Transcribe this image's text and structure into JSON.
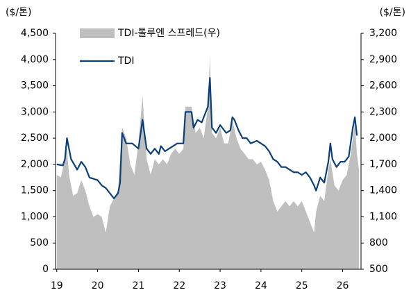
{
  "chart_data": {
    "type": "line",
    "y_unit_label": "($/톤)",
    "y2_unit_label": "($/톤)",
    "xlim": [
      18.97,
      26.45
    ],
    "xticks": [
      19,
      20,
      21,
      22,
      23,
      24,
      25,
      26
    ],
    "ylim": [
      0,
      4500
    ],
    "yticks": [
      0,
      500,
      {
        "value": 1000,
        "label": "1,000"
      },
      {
        "value": 1500,
        "label": "1,500"
      },
      {
        "value": 2000,
        "label": "2,000"
      },
      {
        "value": 2500,
        "label": "2,500"
      },
      {
        "value": 3000,
        "label": "3,000"
      },
      {
        "value": 3500,
        "label": "3,500"
      },
      {
        "value": 4000,
        "label": "4,000"
      },
      {
        "value": 4500,
        "label": "4,500"
      }
    ],
    "y2lim": [
      500,
      3200
    ],
    "y2ticks": [
      500,
      800,
      {
        "value": 1100,
        "label": "1,100"
      },
      {
        "value": 1400,
        "label": "1,400"
      },
      {
        "value": 1700,
        "label": "1,700"
      },
      {
        "value": 2000,
        "label": "2,000"
      },
      {
        "value": 2300,
        "label": "2,300"
      },
      {
        "value": 2600,
        "label": "2,600"
      },
      {
        "value": 2900,
        "label": "2,900"
      },
      {
        "value": 3200,
        "label": "3,200"
      }
    ],
    "series": [
      {
        "name": "TDI-톨루엔 스프레드(우)",
        "kind": "area",
        "axis": "y2",
        "color": "#bfbfbf",
        "x": [
          19.0,
          19.1,
          19.2,
          19.25,
          19.3,
          19.4,
          19.5,
          19.6,
          19.7,
          19.8,
          19.9,
          20.0,
          20.1,
          20.2,
          20.3,
          20.4,
          20.5,
          20.6,
          20.7,
          20.8,
          20.9,
          21.0,
          21.1,
          21.2,
          21.3,
          21.4,
          21.5,
          21.6,
          21.7,
          21.8,
          21.9,
          22.0,
          22.1,
          22.15,
          22.3,
          22.4,
          22.5,
          22.6,
          22.7,
          22.75,
          22.8,
          22.9,
          23.0,
          23.1,
          23.2,
          23.3,
          23.4,
          23.5,
          23.6,
          23.7,
          23.8,
          23.9,
          24.0,
          24.1,
          24.2,
          24.3,
          24.4,
          24.5,
          24.6,
          24.7,
          24.8,
          24.9,
          25.0,
          25.1,
          25.2,
          25.3,
          25.35,
          25.45,
          25.55,
          25.65,
          25.7,
          25.8,
          25.9,
          26.0,
          26.1,
          26.2,
          26.3,
          26.35,
          26.4
        ],
        "values": [
          1580,
          1550,
          1760,
          1880,
          1580,
          1340,
          1370,
          1520,
          1400,
          1220,
          1100,
          1130,
          1100,
          920,
          1220,
          1310,
          1400,
          2120,
          2000,
          1700,
          1580,
          1940,
          2480,
          1760,
          1580,
          1760,
          1700,
          1760,
          1700,
          1820,
          1880,
          1820,
          1880,
          2360,
          2360,
          2060,
          2120,
          2000,
          2360,
          2930,
          2060,
          2000,
          2120,
          1940,
          1940,
          2210,
          2000,
          1880,
          1820,
          1760,
          1760,
          1700,
          1730,
          1640,
          1520,
          1280,
          1160,
          1220,
          1280,
          1220,
          1280,
          1220,
          1280,
          1160,
          1040,
          920,
          1160,
          1340,
          1280,
          1640,
          1760,
          1460,
          1400,
          1520,
          1580,
          1820,
          2180,
          1820,
          1640
        ]
      },
      {
        "name": "TDI",
        "kind": "line",
        "color": "#0b3f7a",
        "x": [
          19.0,
          19.15,
          19.2,
          19.25,
          19.35,
          19.5,
          19.6,
          19.7,
          19.8,
          20.0,
          20.1,
          20.2,
          20.3,
          20.4,
          20.5,
          20.55,
          20.6,
          20.7,
          20.85,
          21.0,
          21.1,
          21.2,
          21.3,
          21.4,
          21.5,
          21.55,
          21.65,
          21.75,
          21.85,
          21.95,
          22.1,
          22.15,
          22.3,
          22.35,
          22.45,
          22.55,
          22.6,
          22.7,
          22.75,
          22.8,
          22.9,
          23.0,
          23.05,
          23.15,
          23.25,
          23.3,
          23.35,
          23.45,
          23.55,
          23.65,
          23.75,
          23.9,
          24.0,
          24.1,
          24.2,
          24.3,
          24.4,
          24.5,
          24.6,
          24.7,
          24.8,
          24.9,
          25.0,
          25.1,
          25.2,
          25.3,
          25.35,
          25.45,
          25.55,
          25.65,
          25.7,
          25.75,
          25.85,
          25.95,
          26.05,
          26.15,
          26.25,
          26.3,
          26.35
        ],
        "values": [
          2000,
          1980,
          2100,
          2500,
          2100,
          1900,
          2050,
          1950,
          1750,
          1700,
          1600,
          1550,
          1450,
          1350,
          1450,
          1650,
          2600,
          2400,
          2400,
          2300,
          2850,
          2300,
          2200,
          2300,
          2200,
          2350,
          2250,
          2300,
          2350,
          2400,
          2400,
          3000,
          3000,
          2700,
          2850,
          2800,
          2900,
          3100,
          3650,
          2700,
          2600,
          2750,
          2700,
          2600,
          2650,
          2900,
          2850,
          2650,
          2500,
          2500,
          2400,
          2450,
          2400,
          2350,
          2250,
          2100,
          2050,
          1950,
          1950,
          1900,
          1850,
          1850,
          1800,
          1850,
          1750,
          1600,
          1500,
          1750,
          1650,
          2050,
          2400,
          2100,
          1950,
          2050,
          2050,
          2150,
          2700,
          2900,
          2550
        ]
      }
    ]
  }
}
